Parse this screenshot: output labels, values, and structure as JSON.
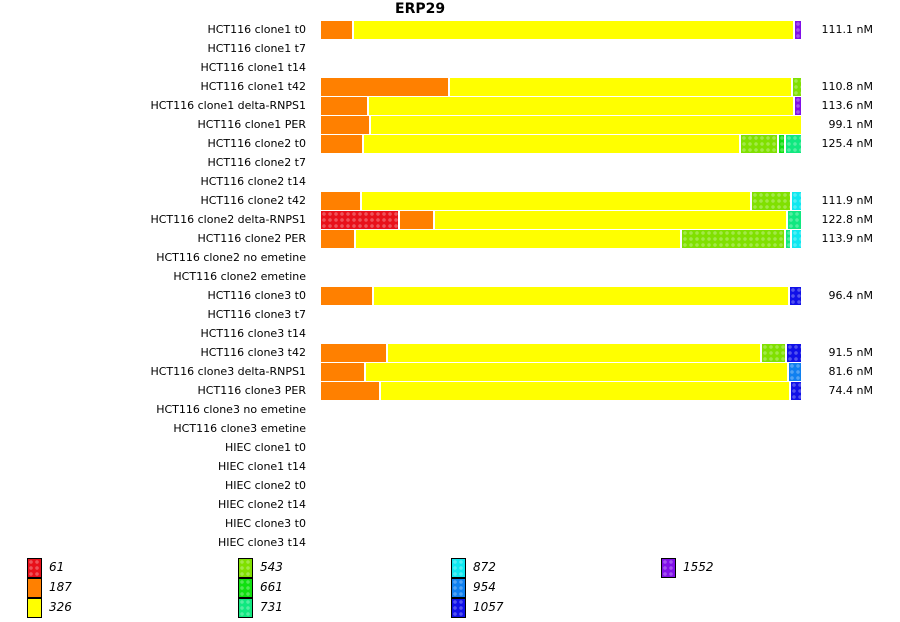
{
  "chart_data": {
    "type": "bar",
    "stacked": true,
    "orientation": "horizontal",
    "normalized": true,
    "title": "ERP29",
    "xlabel": "",
    "ylabel": "",
    "legend_position": "bottom",
    "series_keys": [
      "61",
      "187",
      "326",
      "543",
      "661",
      "731",
      "872",
      "954",
      "1057",
      "1552"
    ],
    "colors": {
      "61": "#e8101a",
      "187": "#ff8000",
      "326": "#ffff00",
      "543": "#80e000",
      "661": "#10e010",
      "731": "#10e880",
      "872": "#10e8f0",
      "954": "#1080f0",
      "1057": "#1010e8",
      "1552": "#8010e8"
    },
    "patterned": [
      "61",
      "543",
      "661",
      "731",
      "872",
      "954",
      "1057",
      "1552"
    ],
    "rows": [
      {
        "label": "HCT116 clone1 t0",
        "total": "111.1 nM",
        "segments": [
          {
            "key": "187",
            "frac": 0.069
          },
          {
            "key": "326",
            "frac": 0.919
          },
          {
            "key": "1552",
            "frac": 0.012
          }
        ]
      },
      {
        "label": "HCT116 clone1 t7",
        "total": null,
        "segments": []
      },
      {
        "label": "HCT116 clone1 t14",
        "total": null,
        "segments": []
      },
      {
        "label": "HCT116 clone1 t42",
        "total": "110.8 nM",
        "segments": [
          {
            "key": "187",
            "frac": 0.269
          },
          {
            "key": "326",
            "frac": 0.715
          },
          {
            "key": "543",
            "frac": 0.016
          }
        ]
      },
      {
        "label": "HCT116 clone1 delta-RNPS1",
        "total": "113.6 nM",
        "segments": [
          {
            "key": "187",
            "frac": 0.1
          },
          {
            "key": "326",
            "frac": 0.888
          },
          {
            "key": "1552",
            "frac": 0.012
          }
        ]
      },
      {
        "label": "HCT116 clone1 PER",
        "total": "99.1 nM",
        "segments": [
          {
            "key": "187",
            "frac": 0.104
          },
          {
            "key": "326",
            "frac": 0.896
          }
        ]
      },
      {
        "label": "HCT116 clone2 t0",
        "total": "125.4 nM",
        "segments": [
          {
            "key": "187",
            "frac": 0.09
          },
          {
            "key": "326",
            "frac": 0.785
          },
          {
            "key": "543",
            "frac": 0.079
          },
          {
            "key": "661",
            "frac": 0.015
          },
          {
            "key": "731",
            "frac": 0.031
          }
        ]
      },
      {
        "label": "HCT116 clone2 t7",
        "total": null,
        "segments": []
      },
      {
        "label": "HCT116 clone2 t14",
        "total": null,
        "segments": []
      },
      {
        "label": "HCT116 clone2 t42",
        "total": "111.9 nM",
        "segments": [
          {
            "key": "187",
            "frac": 0.085
          },
          {
            "key": "326",
            "frac": 0.813
          },
          {
            "key": "543",
            "frac": 0.083
          },
          {
            "key": "872",
            "frac": 0.019
          }
        ]
      },
      {
        "label": "HCT116 clone2 delta-RNPS1",
        "total": "122.8 nM",
        "segments": [
          {
            "key": "61",
            "frac": 0.164
          },
          {
            "key": "187",
            "frac": 0.073
          },
          {
            "key": "326",
            "frac": 0.735
          },
          {
            "key": "731",
            "frac": 0.028
          }
        ]
      },
      {
        "label": "HCT116 clone2 PER",
        "total": "113.9 nM",
        "segments": [
          {
            "key": "187",
            "frac": 0.073
          },
          {
            "key": "326",
            "frac": 0.679
          },
          {
            "key": "543",
            "frac": 0.217
          },
          {
            "key": "731",
            "frac": 0.013
          },
          {
            "key": "872",
            "frac": 0.018
          }
        ]
      },
      {
        "label": "HCT116 clone2 no emetine",
        "total": null,
        "segments": []
      },
      {
        "label": "HCT116 clone2 emetine",
        "total": null,
        "segments": []
      },
      {
        "label": "HCT116 clone3 t0",
        "total": "96.4 nM",
        "segments": [
          {
            "key": "187",
            "frac": 0.11
          },
          {
            "key": "326",
            "frac": 0.867
          },
          {
            "key": "1057",
            "frac": 0.023
          }
        ]
      },
      {
        "label": "HCT116 clone3 t7",
        "total": null,
        "segments": []
      },
      {
        "label": "HCT116 clone3 t14",
        "total": null,
        "segments": []
      },
      {
        "label": "HCT116 clone3 t42",
        "total": "91.5 nM",
        "segments": [
          {
            "key": "187",
            "frac": 0.14
          },
          {
            "key": "326",
            "frac": 0.779
          },
          {
            "key": "543",
            "frac": 0.052
          },
          {
            "key": "1057",
            "frac": 0.029
          }
        ]
      },
      {
        "label": "HCT116 clone3 delta-RNPS1",
        "total": "81.6 nM",
        "segments": [
          {
            "key": "187",
            "frac": 0.094
          },
          {
            "key": "326",
            "frac": 0.881
          },
          {
            "key": "954",
            "frac": 0.025
          }
        ]
      },
      {
        "label": "HCT116 clone3 PER",
        "total": "74.4 nM",
        "segments": [
          {
            "key": "187",
            "frac": 0.125
          },
          {
            "key": "326",
            "frac": 0.854
          },
          {
            "key": "1057",
            "frac": 0.021
          }
        ]
      },
      {
        "label": "HCT116 clone3 no emetine",
        "total": null,
        "segments": []
      },
      {
        "label": "HCT116 clone3 emetine",
        "total": null,
        "segments": []
      },
      {
        "label": "HIEC clone1 t0",
        "total": null,
        "segments": []
      },
      {
        "label": "HIEC clone1 t14",
        "total": null,
        "segments": []
      },
      {
        "label": "HIEC clone2 t0",
        "total": null,
        "segments": []
      },
      {
        "label": "HIEC clone2 t14",
        "total": null,
        "segments": []
      },
      {
        "label": "HIEC clone3 t0",
        "total": null,
        "segments": []
      },
      {
        "label": "HIEC clone3 t14",
        "total": null,
        "segments": []
      }
    ],
    "legend": [
      {
        "label": "61",
        "key": "61"
      },
      {
        "label": "187",
        "key": "187"
      },
      {
        "label": "326",
        "key": "326"
      },
      {
        "label": "543",
        "key": "543"
      },
      {
        "label": "661",
        "key": "661"
      },
      {
        "label": "731",
        "key": "731"
      },
      {
        "label": "872",
        "key": "872"
      },
      {
        "label": "954",
        "key": "954"
      },
      {
        "label": "1057",
        "key": "1057"
      },
      {
        "label": "1552",
        "key": "1552"
      }
    ]
  }
}
